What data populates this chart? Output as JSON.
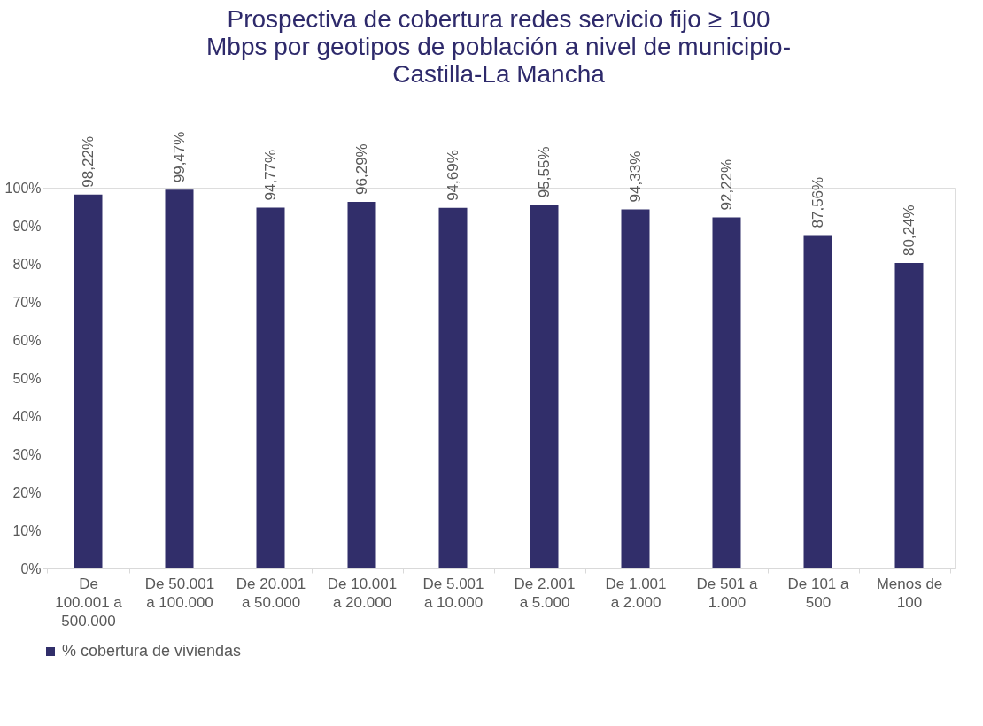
{
  "chart_data": {
    "type": "bar",
    "title": "Prospectiva de cobertura redes servicio fijo ≥ 100 Mbps por geotipos de población a nivel de municipio- Castilla-La Mancha",
    "categories": [
      "De 100.001 a 500.000",
      "De 50.001 a 100.000",
      "De 20.001 a 50.000",
      "De 10.001 a 20.000",
      "De 5.001 a 10.000",
      "De 2.001 a 5.000",
      "De 1.001 a 2.000",
      "De 501 a 1.000",
      "De 101 a 500",
      "Menos de 100"
    ],
    "series": [
      {
        "name": "% cobertura de viviendas",
        "color": "#312e6a",
        "values": [
          98.22,
          99.47,
          94.77,
          96.29,
          94.69,
          95.55,
          94.33,
          92.22,
          87.56,
          80.24
        ],
        "value_labels": [
          "98,22%",
          "99,47%",
          "94,77%",
          "96,29%",
          "94,69%",
          "95,55%",
          "94,33%",
          "92,22%",
          "87,56%",
          "80,24%"
        ]
      }
    ],
    "ylim": [
      0,
      100
    ],
    "yticks": [
      {
        "value": 0,
        "label": "0%"
      },
      {
        "value": 10,
        "label": "10%"
      },
      {
        "value": 20,
        "label": "20%"
      },
      {
        "value": 30,
        "label": "30%"
      },
      {
        "value": 40,
        "label": "40%"
      },
      {
        "value": 50,
        "label": "50%"
      },
      {
        "value": 60,
        "label": "60%"
      },
      {
        "value": 70,
        "label": "70%"
      },
      {
        "value": 80,
        "label": "80%"
      },
      {
        "value": 90,
        "label": "90%"
      },
      {
        "value": 100,
        "label": "100%"
      }
    ],
    "legend": "bottom",
    "grid": false
  }
}
